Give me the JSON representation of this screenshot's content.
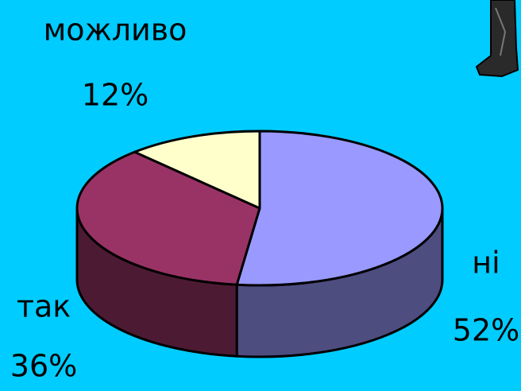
{
  "chart_data": {
    "type": "pie3d",
    "categories": [
      "ні",
      "так",
      "можливо"
    ],
    "values": [
      52,
      36,
      12
    ],
    "value_labels": [
      "52%",
      "36%",
      "12%"
    ],
    "colors": [
      "#9999ff",
      "#993366",
      "#ffffcc"
    ]
  }
}
